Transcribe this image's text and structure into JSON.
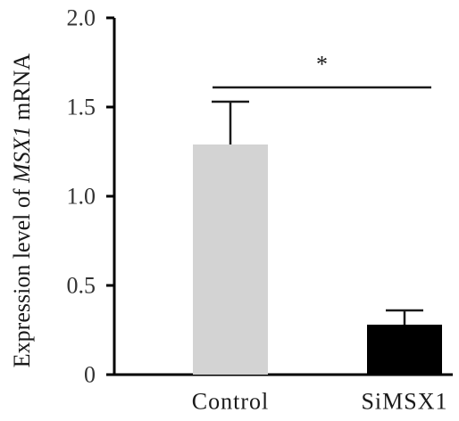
{
  "chart_data": {
    "type": "bar",
    "categories": [
      "Control",
      "SiMSX1"
    ],
    "values": [
      1.29,
      0.28
    ],
    "errors": [
      0.24,
      0.08
    ],
    "bar_colors": [
      "#d3d3d3",
      "#000000"
    ],
    "ylabel_parts": [
      "Expression level of ",
      "MSX1",
      " mRNA"
    ],
    "ylim": [
      0,
      2.0
    ],
    "yticks": [
      0,
      0.5,
      1.0,
      1.5,
      2.0
    ],
    "ytick_labels": [
      "0",
      "0.5",
      "1.0",
      "1.5",
      "2.0"
    ],
    "significance": {
      "between": [
        0,
        1
      ],
      "label": "*"
    },
    "grid": false,
    "legend": "none"
  }
}
